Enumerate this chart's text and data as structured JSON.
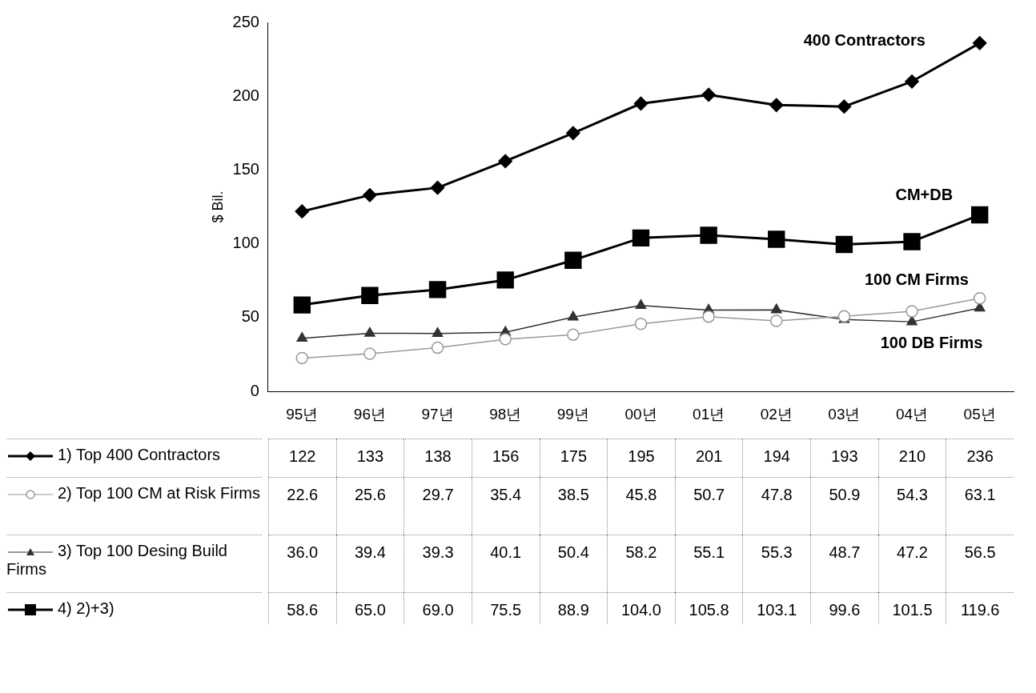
{
  "chart_data": {
    "type": "line",
    "ylabel": "$ Bil.",
    "categories": [
      "95년",
      "96년",
      "97년",
      "98년",
      "99년",
      "00년",
      "01년",
      "02년",
      "03년",
      "04년",
      "05년"
    ],
    "ylim": [
      0,
      250
    ],
    "yticks": [
      0,
      50,
      100,
      150,
      200,
      250
    ],
    "legend": "bottom",
    "series": [
      {
        "name": "1) Top 400 Contractors",
        "color": "#000000",
        "marker": "diamond",
        "values": [
          122,
          133,
          138,
          156,
          175,
          195,
          201,
          194,
          193,
          210,
          236
        ],
        "value_labels": [
          "122",
          "133",
          "138",
          "156",
          "175",
          "195",
          "201",
          "194",
          "193",
          "210",
          "236"
        ]
      },
      {
        "name": "2) Top 100 CM at Risk Firms",
        "color": "#999999",
        "marker": "circle",
        "values": [
          22.6,
          25.6,
          29.7,
          35.4,
          38.5,
          45.8,
          50.7,
          47.8,
          50.9,
          54.3,
          63.1
        ],
        "value_labels": [
          "22.6",
          "25.6",
          "29.7",
          "35.4",
          "38.5",
          "45.8",
          "50.7",
          "47.8",
          "50.9",
          "54.3",
          "63.1"
        ]
      },
      {
        "name": "3) Top 100 Desing Build Firms",
        "color": "#333333",
        "marker": "triangle",
        "values": [
          36.0,
          39.4,
          39.3,
          40.1,
          50.4,
          58.2,
          55.1,
          55.3,
          48.7,
          47.2,
          56.5
        ],
        "value_labels": [
          "36.0",
          "39.4",
          "39.3",
          "40.1",
          "50.4",
          "58.2",
          "55.1",
          "55.3",
          "48.7",
          "47.2",
          "56.5"
        ]
      },
      {
        "name": "4) 2)+3)",
        "color": "#000000",
        "marker": "square",
        "values": [
          58.6,
          65.0,
          69.0,
          75.5,
          88.9,
          104.0,
          105.8,
          103.1,
          99.6,
          101.5,
          119.6
        ],
        "value_labels": [
          "58.6",
          "65.0",
          "69.0",
          "75.5",
          "88.9",
          "104.0",
          "105.8",
          "103.1",
          "99.6",
          "101.5",
          "119.6"
        ]
      }
    ],
    "annotations": [
      "400 Contractors",
      "CM+DB",
      "100 CM Firms",
      "100 DB Firms"
    ]
  }
}
